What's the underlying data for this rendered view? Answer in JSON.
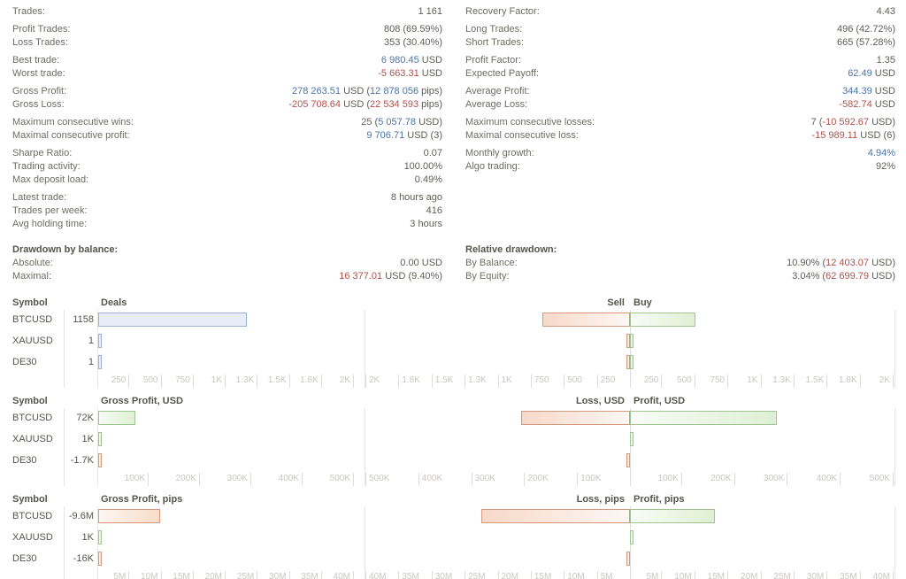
{
  "colors": {
    "accent_blue": "#4a74a8",
    "accent_red": "#b1504b",
    "label_gray": "#6d6c66",
    "bar_blue": "#e7ecf7",
    "bar_blue_border": "#9fb2d4",
    "bar_green": "#def0d3",
    "bar_green_border": "#a1c493",
    "bar_red": "#f8dcc9",
    "bar_red_border": "#d59b80"
  },
  "stats": {
    "left_groups": [
      [
        {
          "label": "Trades:",
          "value": [
            {
              "t": "1 161",
              "c": "d"
            }
          ]
        }
      ],
      [
        {
          "label": "Profit Trades:",
          "value": [
            {
              "t": "808 (69.59%)",
              "c": "d"
            }
          ]
        },
        {
          "label": "Loss Trades:",
          "value": [
            {
              "t": "353 (30.40%)",
              "c": "d"
            }
          ]
        }
      ],
      [
        {
          "label": "Best trade:",
          "value": [
            {
              "t": "6 980.45",
              "c": "b"
            },
            {
              "t": " USD",
              "c": "d"
            }
          ]
        },
        {
          "label": "Worst trade:",
          "value": [
            {
              "t": "-5 663.31",
              "c": "r"
            },
            {
              "t": " USD",
              "c": "d"
            }
          ]
        }
      ],
      [
        {
          "label": "Gross Profit:",
          "value": [
            {
              "t": "278 263.51",
              "c": "b"
            },
            {
              "t": " USD (",
              "c": "d"
            },
            {
              "t": "12 878 056",
              "c": "b"
            },
            {
              "t": " pips)",
              "c": "d"
            }
          ]
        },
        {
          "label": "Gross Loss:",
          "value": [
            {
              "t": "-205 708.64",
              "c": "r"
            },
            {
              "t": " USD (",
              "c": "d"
            },
            {
              "t": "22 534 593",
              "c": "r"
            },
            {
              "t": " pips)",
              "c": "d"
            }
          ]
        }
      ],
      [
        {
          "label": "Maximum consecutive wins:",
          "value": [
            {
              "t": "25 (",
              "c": "d"
            },
            {
              "t": "5 057.78",
              "c": "b"
            },
            {
              "t": " USD)",
              "c": "d"
            }
          ]
        },
        {
          "label": "Maximal consecutive profit:",
          "value": [
            {
              "t": "9 706.71",
              "c": "b"
            },
            {
              "t": " USD (3)",
              "c": "d"
            }
          ]
        }
      ],
      [
        {
          "label": "Sharpe Ratio:",
          "value": [
            {
              "t": "0.07",
              "c": "d"
            }
          ]
        },
        {
          "label": "Trading activity:",
          "value": [
            {
              "t": "100.00%",
              "c": "d"
            }
          ]
        },
        {
          "label": "Max deposit load:",
          "value": [
            {
              "t": "0.49%",
              "c": "d"
            }
          ]
        }
      ],
      [
        {
          "label": "Latest trade:",
          "value": [
            {
              "t": "8 hours ago",
              "c": "d"
            }
          ]
        },
        {
          "label": "Trades per week:",
          "value": [
            {
              "t": "416",
              "c": "d"
            }
          ]
        },
        {
          "label": "Avg holding time:",
          "value": [
            {
              "t": "3 hours",
              "c": "d"
            }
          ]
        }
      ]
    ],
    "right_groups": [
      [
        {
          "label": "Recovery Factor:",
          "value": [
            {
              "t": "4.43",
              "c": "d"
            }
          ]
        }
      ],
      [
        {
          "label": "Long Trades:",
          "value": [
            {
              "t": "496 (42.72%)",
              "c": "d"
            }
          ]
        },
        {
          "label": "Short Trades:",
          "value": [
            {
              "t": "665 (57.28%)",
              "c": "d"
            }
          ]
        }
      ],
      [
        {
          "label": "Profit Factor:",
          "value": [
            {
              "t": "1.35",
              "c": "d"
            }
          ]
        },
        {
          "label": "Expected Payoff:",
          "value": [
            {
              "t": "62.49",
              "c": "b"
            },
            {
              "t": " USD",
              "c": "d"
            }
          ]
        }
      ],
      [
        {
          "label": "Average Profit:",
          "value": [
            {
              "t": "344.39",
              "c": "b"
            },
            {
              "t": " USD",
              "c": "d"
            }
          ]
        },
        {
          "label": "Average Loss:",
          "value": [
            {
              "t": "-582.74",
              "c": "r"
            },
            {
              "t": " USD",
              "c": "d"
            }
          ]
        }
      ],
      [
        {
          "label": "Maximum consecutive losses:",
          "value": [
            {
              "t": "7 (",
              "c": "d"
            },
            {
              "t": "-10 592.67",
              "c": "r"
            },
            {
              "t": " USD)",
              "c": "d"
            }
          ]
        },
        {
          "label": "Maximal consecutive loss:",
          "value": [
            {
              "t": "-15 989.11",
              "c": "r"
            },
            {
              "t": " USD (6)",
              "c": "d"
            }
          ]
        }
      ],
      [
        {
          "label": "Monthly growth:",
          "value": [
            {
              "t": "4.94%",
              "c": "b"
            }
          ]
        },
        {
          "label": "Algo trading:",
          "value": [
            {
              "t": "92%",
              "c": "d"
            }
          ]
        }
      ]
    ]
  },
  "drawdown": {
    "left": {
      "header": "Drawdown by balance:",
      "rows": [
        {
          "label": "Absolute:",
          "value": [
            {
              "t": "0.00 USD",
              "c": "d"
            }
          ]
        },
        {
          "label": "Maximal:",
          "value": [
            {
              "t": "16 377.01",
              "c": "r"
            },
            {
              "t": " USD (9.40%)",
              "c": "d"
            }
          ]
        }
      ]
    },
    "right": {
      "header": "Relative drawdown:",
      "rows": [
        {
          "label": "By Balance:",
          "value": [
            {
              "t": "10.90% (",
              "c": "d"
            },
            {
              "t": "12 403.07",
              "c": "r"
            },
            {
              "t": " USD)",
              "c": "d"
            }
          ]
        },
        {
          "label": "By Equity:",
          "value": [
            {
              "t": "3.04% (",
              "c": "d"
            },
            {
              "t": "62 699.79",
              "c": "r"
            },
            {
              "t": " USD)",
              "c": "d"
            }
          ]
        }
      ]
    }
  },
  "chart_data": [
    {
      "type": "bar",
      "symbol_header": "Symbol",
      "left_title": "Deals",
      "right_title_sell": "Sell",
      "right_title_buy": "Buy",
      "axis_max": 2000,
      "ticks": [
        {
          "v": 250,
          "label": "250"
        },
        {
          "v": 500,
          "label": "500"
        },
        {
          "v": 750,
          "label": "750"
        },
        {
          "v": 1000,
          "label": "1K"
        },
        {
          "v": 1250,
          "label": "1.3K"
        },
        {
          "v": 1500,
          "label": "1.5K"
        },
        {
          "v": 1750,
          "label": "1.8K"
        },
        {
          "v": 2000,
          "label": "2K"
        }
      ],
      "rows": [
        {
          "symbol": "BTCUSD",
          "value": "1158",
          "left": {
            "amount": 1158,
            "color": "blue"
          },
          "right": {
            "sell": 665,
            "buy": 496
          }
        },
        {
          "symbol": "XAUUSD",
          "value": "1",
          "left": {
            "amount": 1,
            "color": "blue"
          },
          "right": {
            "sell": 1,
            "buy": 1
          }
        },
        {
          "symbol": "DE30",
          "value": "1",
          "left": {
            "amount": 1,
            "color": "blue"
          },
          "right": {
            "sell": 1,
            "buy": 1
          }
        }
      ]
    },
    {
      "type": "bar",
      "symbol_header": "Symbol",
      "left_title": "Gross Profit, USD",
      "right_title_sell": "Loss, USD",
      "right_title_buy": "Profit, USD",
      "axis_max": 500000,
      "ticks": [
        {
          "v": 100000,
          "label": "100K"
        },
        {
          "v": 200000,
          "label": "200K"
        },
        {
          "v": 300000,
          "label": "300K"
        },
        {
          "v": 400000,
          "label": "400K"
        },
        {
          "v": 500000,
          "label": "500K"
        }
      ],
      "rows": [
        {
          "symbol": "BTCUSD",
          "value": "72K",
          "left": {
            "amount": 72000,
            "color": "green"
          },
          "right": {
            "sell": 205708,
            "buy": 278263
          }
        },
        {
          "symbol": "XAUUSD",
          "value": "1K",
          "left": {
            "amount": 1000,
            "color": "green"
          },
          "right": {
            "sell": 0,
            "buy": 1000
          }
        },
        {
          "symbol": "DE30",
          "value": "-1.7K",
          "left": {
            "amount": 1700,
            "color": "red"
          },
          "right": {
            "sell": 1700,
            "buy": 0
          }
        }
      ]
    },
    {
      "type": "bar",
      "symbol_header": "Symbol",
      "left_title": "Gross Profit, pips",
      "right_title_sell": "Loss, pips",
      "right_title_buy": "Profit, pips",
      "axis_max": 40000000,
      "ticks": [
        {
          "v": 5000000,
          "label": "5M"
        },
        {
          "v": 10000000,
          "label": "10M"
        },
        {
          "v": 15000000,
          "label": "15M"
        },
        {
          "v": 20000000,
          "label": "20M"
        },
        {
          "v": 25000000,
          "label": "25M"
        },
        {
          "v": 30000000,
          "label": "30M"
        },
        {
          "v": 35000000,
          "label": "35M"
        },
        {
          "v": 40000000,
          "label": "40M"
        }
      ],
      "rows": [
        {
          "symbol": "BTCUSD",
          "value": "-9.6M",
          "left": {
            "amount": 9600000,
            "color": "red"
          },
          "right": {
            "sell": 22534593,
            "buy": 12878056
          }
        },
        {
          "symbol": "XAUUSD",
          "value": "1K",
          "left": {
            "amount": 1000,
            "color": "green"
          },
          "right": {
            "sell": 0,
            "buy": 1000
          }
        },
        {
          "symbol": "DE30",
          "value": "-16K",
          "left": {
            "amount": 16000,
            "color": "red"
          },
          "right": {
            "sell": 16000,
            "buy": 0
          }
        }
      ]
    }
  ]
}
